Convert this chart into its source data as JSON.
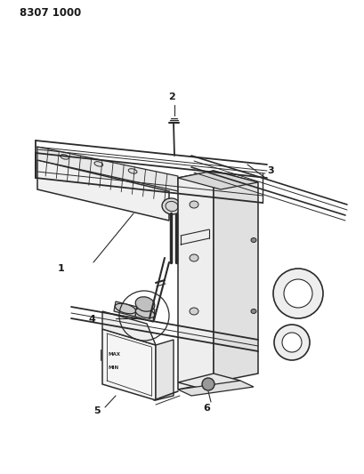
{
  "background_color": "#ffffff",
  "line_color": "#2a2a2a",
  "label_color": "#1a1a1a",
  "fig_width": 4.1,
  "fig_height": 5.33,
  "dpi": 100,
  "header": "8307 1000"
}
